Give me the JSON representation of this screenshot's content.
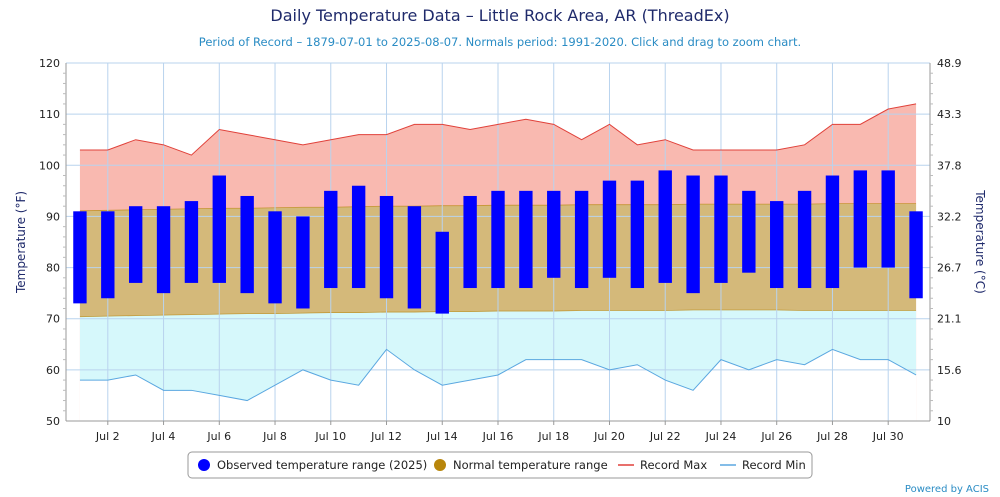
{
  "title": "Daily Temperature Data – Little Rock Area, AR (ThreadEx)",
  "subtitle": "Period of Record – 1879-07-01 to 2025-08-07. Normals period: 1991-2020. Click and drag to zoom chart.",
  "credit": "Powered by ACIS",
  "colors": {
    "observed": "#0000ff",
    "normal_fill": "#d4b97a",
    "normal_line": "#b8860b",
    "record_max_fill": "#f9b9b0",
    "record_max_line": "#e0413a",
    "record_min_fill": "#d6f8fb",
    "record_min_line": "#5aa7e0",
    "grid": "#b9d3ee",
    "title": "#1f2a6b",
    "subtitle": "#2a8cc4"
  },
  "legend": {
    "items": [
      {
        "label": "Observed temperature range (2025)",
        "symbol": "circle",
        "color": "#0000ff"
      },
      {
        "label": "Normal temperature range",
        "symbol": "circle",
        "color": "#b8860b"
      },
      {
        "label": "Record Max",
        "symbol": "line",
        "color": "#e0413a"
      },
      {
        "label": "Record Min",
        "symbol": "line",
        "color": "#5aa7e0"
      }
    ]
  },
  "chart_data": {
    "type": "bar",
    "title": "Daily Temperature Data – Little Rock Area, AR (ThreadEx)",
    "subtitle": "Period of Record – 1879-07-01 to 2025-08-07. Normals period: 1991-2020. Click and drag to zoom chart.",
    "ylabel": "Temperature (°F)",
    "ylabel_right": "Temperature (°C)",
    "ylim": [
      50,
      120
    ],
    "y_ticks": [
      50,
      60,
      70,
      80,
      90,
      100,
      110,
      120
    ],
    "y_ticks_right": [
      "10",
      "15.6",
      "21.1",
      "26.7",
      "32.2",
      "37.8",
      "43.3",
      "48.9"
    ],
    "x_tick_labels": [
      "Jul 2",
      "Jul 4",
      "Jul 6",
      "Jul 8",
      "Jul 10",
      "Jul 12",
      "Jul 14",
      "Jul 16",
      "Jul 18",
      "Jul 20",
      "Jul 22",
      "Jul 24",
      "Jul 26",
      "Jul 28",
      "Jul 30"
    ],
    "x_tick_days": [
      2,
      4,
      6,
      8,
      10,
      12,
      14,
      16,
      18,
      20,
      22,
      24,
      26,
      28,
      30
    ],
    "days": [
      1,
      2,
      3,
      4,
      5,
      6,
      7,
      8,
      9,
      10,
      11,
      12,
      13,
      14,
      15,
      16,
      17,
      18,
      19,
      20,
      21,
      22,
      23,
      24,
      25,
      26,
      27,
      28,
      29,
      30,
      31
    ],
    "grid": true,
    "legend_position": "bottom",
    "series": [
      {
        "name": "Observed temperature range (2025)",
        "low": [
          73,
          74,
          77,
          75,
          77,
          77,
          75,
          73,
          72,
          76,
          76,
          74,
          72,
          71,
          76,
          76,
          76,
          78,
          76,
          78,
          76,
          77,
          75,
          77,
          79,
          76,
          76,
          76,
          80,
          80,
          74
        ],
        "high": [
          91,
          91,
          92,
          92,
          93,
          98,
          94,
          91,
          90,
          95,
          96,
          94,
          92,
          87,
          94,
          95,
          95,
          95,
          95,
          97,
          97,
          99,
          98,
          98,
          95,
          93,
          95,
          98,
          99,
          99,
          91
        ]
      },
      {
        "name": "Normal temperature range",
        "low": [
          70.4,
          70.5,
          70.6,
          70.7,
          70.8,
          70.9,
          71.0,
          71.0,
          71.1,
          71.2,
          71.2,
          71.3,
          71.3,
          71.4,
          71.4,
          71.5,
          71.5,
          71.5,
          71.6,
          71.6,
          71.6,
          71.6,
          71.7,
          71.7,
          71.7,
          71.7,
          71.6,
          71.6,
          71.6,
          71.6,
          71.6
        ],
        "high": [
          91.1,
          91.2,
          91.3,
          91.4,
          91.5,
          91.6,
          91.6,
          91.7,
          91.8,
          91.8,
          91.9,
          92.0,
          92.0,
          92.1,
          92.1,
          92.2,
          92.2,
          92.2,
          92.3,
          92.3,
          92.3,
          92.3,
          92.4,
          92.4,
          92.4,
          92.4,
          92.4,
          92.5,
          92.5,
          92.5,
          92.5
        ]
      },
      {
        "name": "Record Max",
        "values": [
          103,
          103,
          105,
          104,
          102,
          107,
          106,
          105,
          104,
          105,
          106,
          106,
          108,
          108,
          107,
          108,
          109,
          108,
          105,
          108,
          104,
          105,
          103,
          103,
          103,
          103,
          104,
          108,
          108,
          111,
          112
        ]
      },
      {
        "name": "Record Min",
        "values": [
          58,
          58,
          59,
          56,
          56,
          55,
          54,
          57,
          60,
          58,
          57,
          64,
          60,
          57,
          58,
          59,
          62,
          62,
          62,
          60,
          61,
          58,
          56,
          62,
          60,
          62,
          61,
          64,
          62,
          62,
          59
        ]
      }
    ]
  }
}
